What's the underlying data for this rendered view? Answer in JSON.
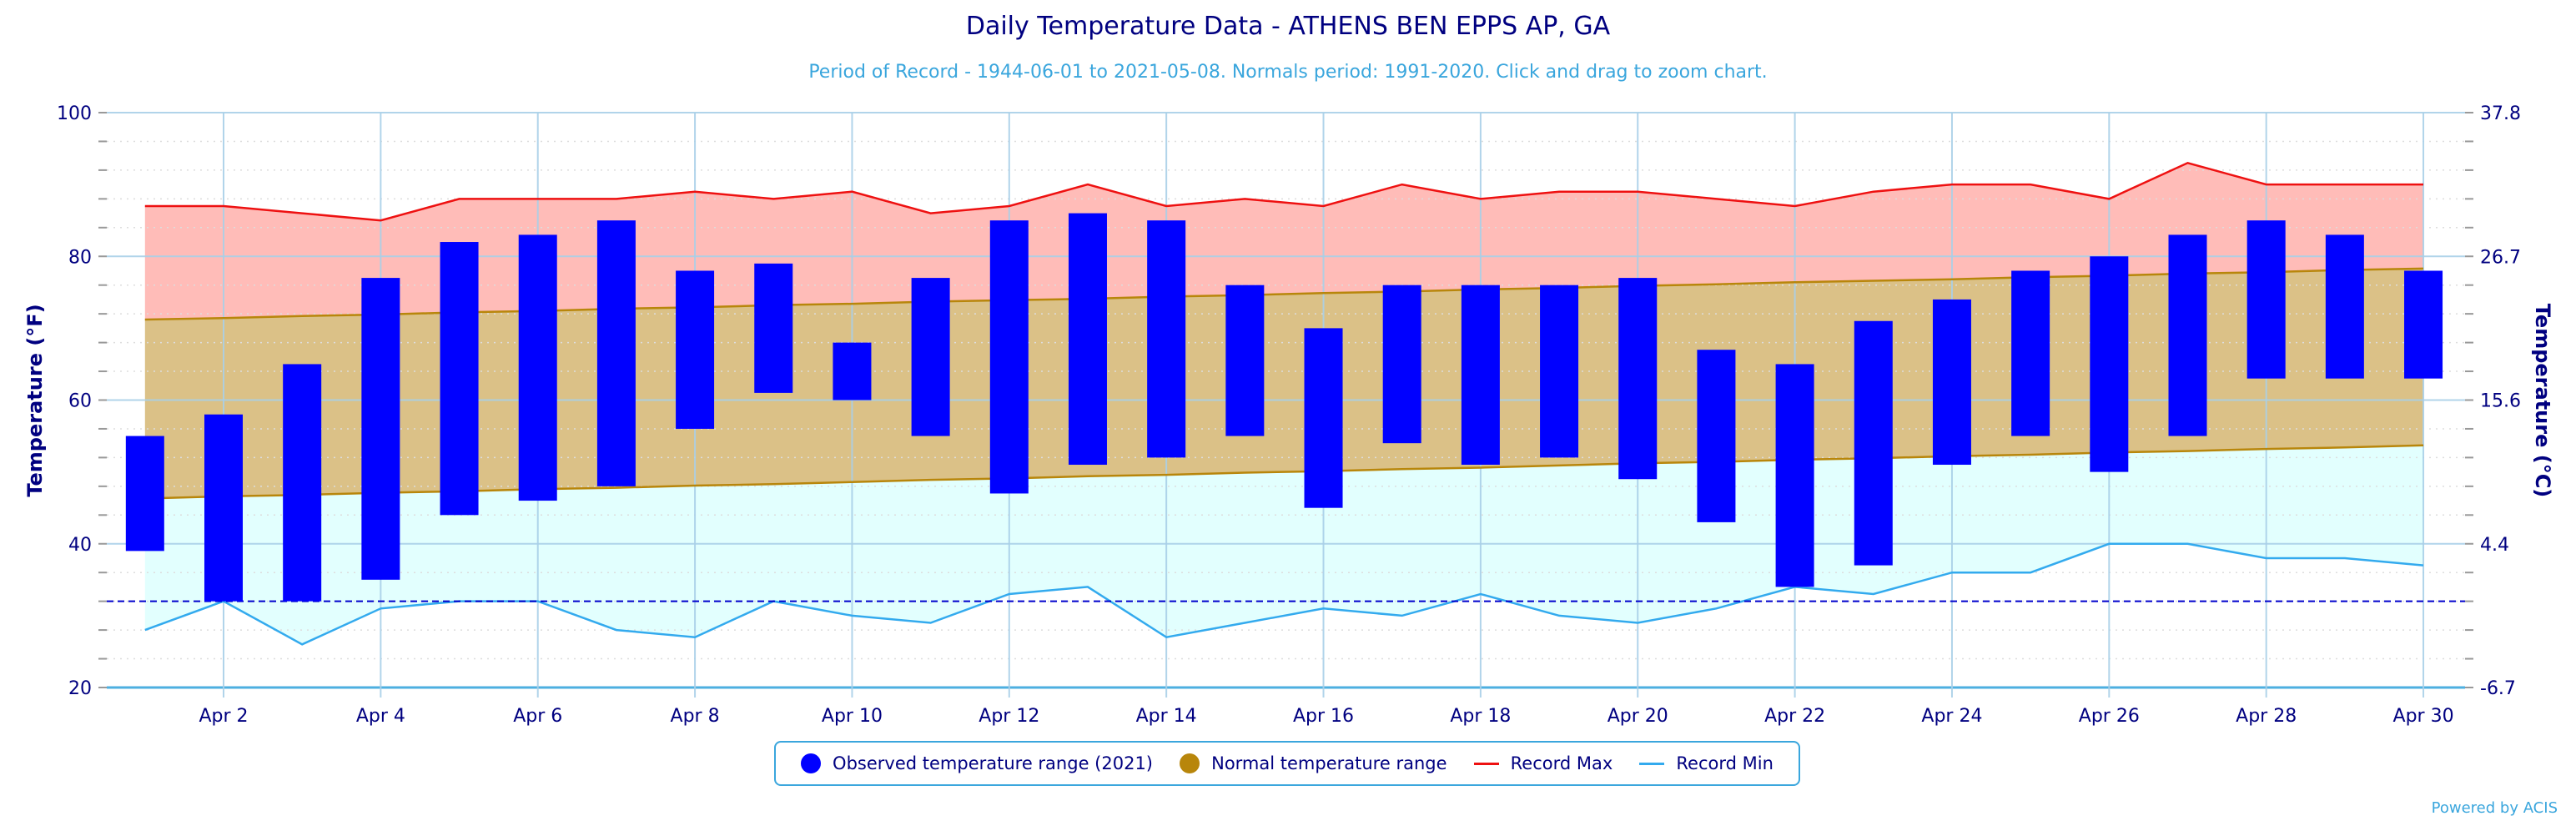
{
  "header": {
    "title": "Daily Temperature Data - ATHENS BEN EPPS AP, GA",
    "subtitle": "Period of Record - 1944-06-01 to 2021-05-08. Normals period: 1991-2020. Click and drag to zoom chart."
  },
  "footer": {
    "credit": "Powered by ACIS"
  },
  "colors": {
    "observed": "#0000ff",
    "normal_fill": "#dbc187",
    "normal_line": "#b8860b",
    "record_max_fill": "#ffbcb8",
    "record_max_line": "#ee1111",
    "record_min_fill": "#e2fffe",
    "record_min_line": "#33aaee",
    "freezing_line": "#0000cc",
    "text": "#000080",
    "subtitle": "#3aa6dd"
  },
  "chart_data": {
    "type": "bar",
    "title": "Daily Temperature Data - ATHENS BEN EPPS AP, GA",
    "ylabel": "Temperature (°F)",
    "ylabel_right": "Temperature (°C)",
    "ylim": [
      20,
      100
    ],
    "yticks": [
      100,
      80,
      60,
      40,
      20
    ],
    "yticks_right": [
      "37.8",
      "26.7",
      "15.6",
      "4.4",
      "-6.7"
    ],
    "x_tick_labels": [
      "Apr 2",
      "Apr 4",
      "Apr 6",
      "Apr 8",
      "Apr 10",
      "Apr 12",
      "Apr 14",
      "Apr 16",
      "Apr 18",
      "Apr 20",
      "Apr 22",
      "Apr 24",
      "Apr 26",
      "Apr 28",
      "Apr 30"
    ],
    "x_tick_days": [
      2,
      4,
      6,
      8,
      10,
      12,
      14,
      16,
      18,
      20,
      22,
      24,
      26,
      28,
      30
    ],
    "days": [
      1,
      2,
      3,
      4,
      5,
      6,
      7,
      8,
      9,
      10,
      11,
      12,
      13,
      14,
      15,
      16,
      17,
      18,
      19,
      20,
      21,
      22,
      23,
      24,
      25,
      26,
      27,
      28,
      29,
      30
    ],
    "freezing_line": 32,
    "grid": true,
    "legend_position": "bottom-center",
    "legend": [
      {
        "label": "Observed temperature range (2021)",
        "kind": "dot",
        "color_key": "observed"
      },
      {
        "label": "Normal temperature range",
        "kind": "dot",
        "color_key": "normal_line"
      },
      {
        "label": "Record Max",
        "kind": "line",
        "color_key": "record_max_line"
      },
      {
        "label": "Record Min",
        "kind": "line",
        "color_key": "record_min_line"
      }
    ],
    "series": [
      {
        "name": "Observed High",
        "values": [
          55,
          58,
          65,
          77,
          82,
          83,
          85,
          78,
          79,
          68,
          77,
          85,
          86,
          85,
          76,
          70,
          76,
          76,
          76,
          77,
          67,
          65,
          71,
          74,
          78,
          80,
          83,
          85,
          83,
          78
        ]
      },
      {
        "name": "Observed Low",
        "values": [
          39,
          32,
          32,
          35,
          44,
          46,
          48,
          56,
          61,
          60,
          55,
          47,
          51,
          52,
          55,
          45,
          54,
          51,
          52,
          49,
          43,
          34,
          37,
          51,
          55,
          50,
          55,
          63,
          63,
          63
        ]
      },
      {
        "name": "Normal High",
        "values": [
          71.2,
          71.4,
          71.7,
          71.9,
          72.2,
          72.4,
          72.7,
          72.9,
          73.2,
          73.4,
          73.7,
          73.9,
          74.1,
          74.4,
          74.6,
          74.9,
          75.1,
          75.4,
          75.6,
          75.9,
          76.1,
          76.4,
          76.6,
          76.8,
          77.1,
          77.3,
          77.6,
          77.8,
          78.1,
          78.3
        ]
      },
      {
        "name": "Normal Low",
        "values": [
          46.3,
          46.6,
          46.8,
          47.1,
          47.3,
          47.6,
          47.8,
          48.1,
          48.3,
          48.6,
          48.9,
          49.1,
          49.4,
          49.6,
          49.9,
          50.1,
          50.4,
          50.6,
          50.9,
          51.2,
          51.4,
          51.7,
          51.9,
          52.2,
          52.4,
          52.7,
          52.9,
          53.2,
          53.4,
          53.7
        ]
      },
      {
        "name": "Record Max",
        "values": [
          87,
          87,
          86,
          85,
          88,
          88,
          88,
          89,
          88,
          89,
          86,
          87,
          90,
          87,
          88,
          87,
          90,
          88,
          89,
          89,
          88,
          87,
          89,
          90,
          90,
          88,
          93,
          90,
          90,
          90
        ]
      },
      {
        "name": "Record Min",
        "values": [
          28,
          32,
          26,
          31,
          32,
          32,
          28,
          27,
          32,
          30,
          29,
          33,
          34,
          27,
          29,
          31,
          30,
          33,
          30,
          29,
          31,
          34,
          33,
          36,
          36,
          40,
          40,
          38,
          38,
          37
        ]
      }
    ]
  }
}
